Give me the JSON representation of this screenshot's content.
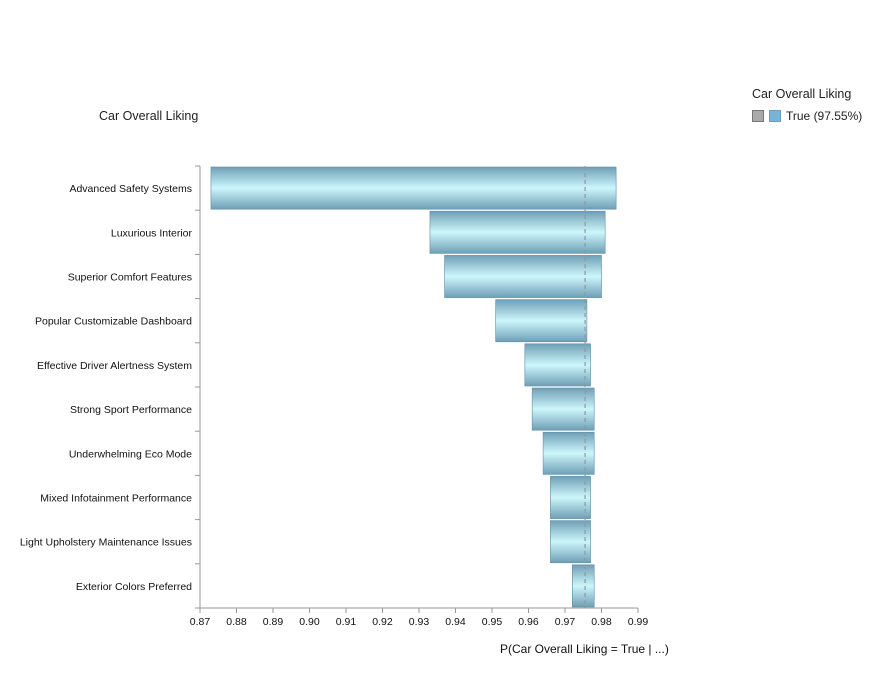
{
  "chart_data": {
    "type": "bar",
    "orientation": "horizontal",
    "title": "Car Overall Liking",
    "xlabel": "P(Car Overall Liking = True | ...)",
    "xlim": [
      0.87,
      0.99
    ],
    "xticks": [
      "0.87",
      "0.88",
      "0.89",
      "0.90",
      "0.91",
      "0.92",
      "0.93",
      "0.94",
      "0.95",
      "0.96",
      "0.97",
      "0.98",
      "0.99"
    ],
    "baseline": 0.9755,
    "categories": [
      "Advanced Safety Systems",
      "Luxurious Interior",
      "Superior Comfort Features",
      "Popular Customizable Dashboard",
      "Effective Driver Alertness System",
      "Strong Sport Performance",
      "Underwhelming Eco Mode",
      "Mixed Infotainment Performance",
      "Light Upholstery Maintenance Issues",
      "Exterior Colors Preferred"
    ],
    "ranges": [
      [
        0.873,
        0.984
      ],
      [
        0.933,
        0.981
      ],
      [
        0.937,
        0.98
      ],
      [
        0.951,
        0.976
      ],
      [
        0.959,
        0.977
      ],
      [
        0.961,
        0.978
      ],
      [
        0.964,
        0.978
      ],
      [
        0.966,
        0.977
      ],
      [
        0.966,
        0.977
      ],
      [
        0.972,
        0.978
      ]
    ],
    "legend": {
      "title": "Car Overall Liking",
      "entries": [
        {
          "label": "True (97.55%)",
          "color": "#7ab3d8"
        }
      ],
      "placement": "top-right"
    }
  }
}
